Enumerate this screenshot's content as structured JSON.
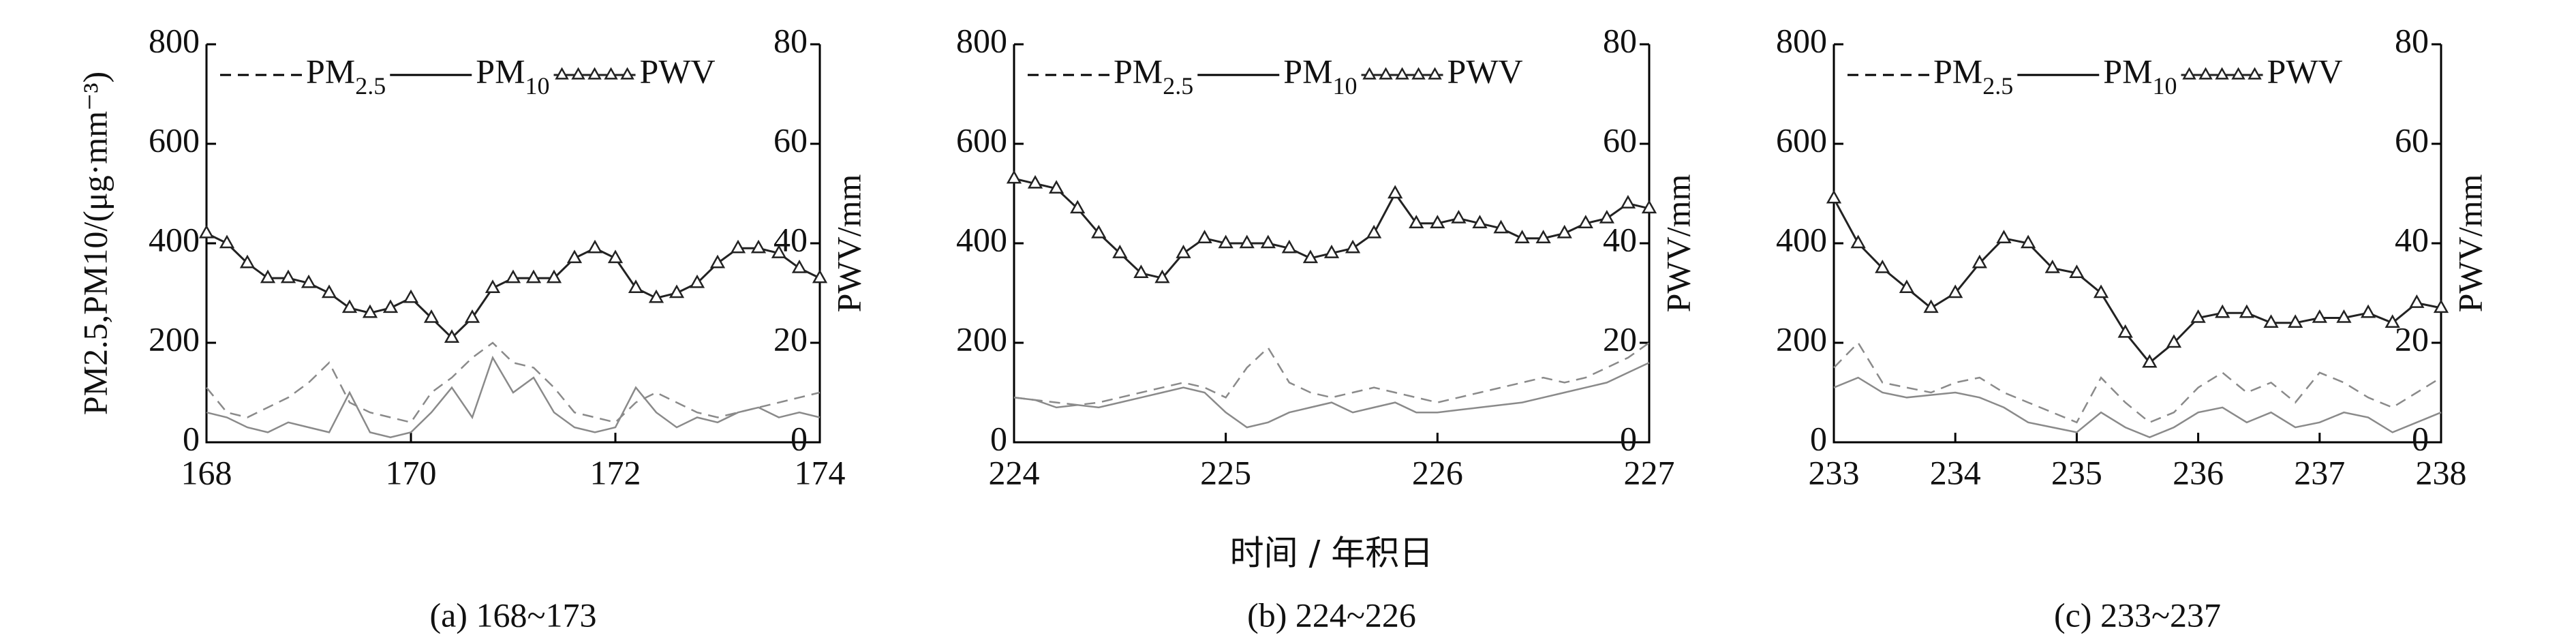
{
  "chart_data": [
    {
      "type": "line",
      "caption": "(a) 168~173",
      "ylabel": "PM2.5,PM10/(μg·mm⁻³)",
      "y2label": "PWV/mm",
      "x": [
        168,
        168.2,
        168.4,
        168.6,
        168.8,
        169,
        169.2,
        169.4,
        169.6,
        169.8,
        170,
        170.2,
        170.4,
        170.6,
        170.8,
        171,
        171.2,
        171.4,
        171.6,
        171.8,
        172,
        172.2,
        172.4,
        172.6,
        172.8,
        173,
        173.2,
        173.4,
        173.6,
        173.8,
        174
      ],
      "xlim": [
        168,
        174
      ],
      "xticks": [
        168,
        170,
        172,
        174
      ],
      "ylim": [
        0,
        800
      ],
      "yticks": [
        0,
        200,
        400,
        600,
        800
      ],
      "y2lim": [
        0,
        80
      ],
      "y2ticks": [
        0,
        20,
        40,
        60,
        80
      ],
      "series": [
        {
          "name": "PM2.5",
          "color": "#8a8a8a",
          "style": "dashed",
          "values": [
            110,
            60,
            50,
            70,
            90,
            120,
            160,
            80,
            60,
            50,
            40,
            100,
            130,
            170,
            200,
            160,
            150,
            110,
            60,
            50,
            40,
            80,
            100,
            80,
            60,
            50,
            60,
            70,
            80,
            90,
            100
          ]
        },
        {
          "name": "PM10",
          "color": "#8a8a8a",
          "style": "solid",
          "values": [
            60,
            50,
            30,
            20,
            40,
            30,
            20,
            100,
            20,
            10,
            20,
            60,
            110,
            50,
            170,
            100,
            130,
            60,
            30,
            20,
            30,
            110,
            60,
            30,
            50,
            40,
            60,
            70,
            50,
            60,
            50
          ]
        },
        {
          "name": "PWV",
          "color": "#222222",
          "style": "triangle",
          "axis": "y2",
          "values": [
            42,
            40,
            36,
            33,
            33,
            32,
            30,
            27,
            26,
            27,
            29,
            25,
            21,
            25,
            31,
            33,
            33,
            33,
            37,
            39,
            37,
            31,
            29,
            30,
            32,
            36,
            39,
            39,
            38,
            35,
            33
          ]
        }
      ]
    },
    {
      "type": "line",
      "caption": "(b) 224~226",
      "xlabel": "时间 / 年积日",
      "y2label": "PWV/mm",
      "x": [
        224,
        224.1,
        224.2,
        224.3,
        224.4,
        224.5,
        224.6,
        224.7,
        224.8,
        224.9,
        225,
        225.1,
        225.2,
        225.3,
        225.4,
        225.5,
        225.6,
        225.7,
        225.8,
        225.9,
        226,
        226.1,
        226.2,
        226.3,
        226.4,
        226.5,
        226.6,
        226.7,
        226.8,
        226.9,
        227
      ],
      "xlim": [
        224,
        227
      ],
      "xticks": [
        224,
        225,
        226,
        227
      ],
      "ylim": [
        0,
        800
      ],
      "yticks": [
        0,
        200,
        400,
        600,
        800
      ],
      "y2lim": [
        0,
        80
      ],
      "y2ticks": [
        0,
        20,
        40,
        60,
        80
      ],
      "series": [
        {
          "name": "PM2.5",
          "color": "#8a8a8a",
          "style": "dashed",
          "values": [
            90,
            85,
            80,
            75,
            80,
            90,
            100,
            110,
            120,
            110,
            90,
            150,
            190,
            120,
            100,
            90,
            100,
            110,
            100,
            90,
            80,
            90,
            100,
            110,
            120,
            130,
            120,
            130,
            150,
            170,
            200
          ]
        },
        {
          "name": "PM10",
          "color": "#8a8a8a",
          "style": "solid",
          "values": [
            90,
            85,
            70,
            75,
            70,
            80,
            90,
            100,
            110,
            100,
            60,
            30,
            40,
            60,
            70,
            80,
            60,
            70,
            80,
            60,
            60,
            65,
            70,
            75,
            80,
            90,
            100,
            110,
            120,
            140,
            160
          ]
        },
        {
          "name": "PWV",
          "color": "#222222",
          "style": "triangle",
          "axis": "y2",
          "values": [
            53,
            52,
            51,
            47,
            42,
            38,
            34,
            33,
            38,
            41,
            40,
            40,
            40,
            39,
            37,
            38,
            39,
            42,
            50,
            44,
            44,
            45,
            44,
            43,
            41,
            41,
            42,
            44,
            45,
            48,
            47
          ]
        }
      ]
    },
    {
      "type": "line",
      "caption": "(c) 233~237",
      "y2label": "PWV/mm",
      "x": [
        233,
        233.2,
        233.4,
        233.6,
        233.8,
        234,
        234.2,
        234.4,
        234.6,
        234.8,
        235,
        235.2,
        235.4,
        235.6,
        235.8,
        236,
        236.2,
        236.4,
        236.6,
        236.8,
        237,
        237.2,
        237.4,
        237.6,
        237.8,
        238
      ],
      "xlim": [
        233,
        238
      ],
      "xticks": [
        233,
        234,
        235,
        236,
        237,
        238
      ],
      "ylim": [
        0,
        800
      ],
      "yticks": [
        0,
        200,
        400,
        600,
        800
      ],
      "y2lim": [
        0,
        80
      ],
      "y2ticks": [
        0,
        20,
        40,
        60,
        80
      ],
      "series": [
        {
          "name": "PM2.5",
          "color": "#8a8a8a",
          "style": "dashed",
          "values": [
            150,
            200,
            120,
            110,
            100,
            120,
            130,
            100,
            80,
            60,
            40,
            130,
            80,
            40,
            60,
            110,
            140,
            100,
            120,
            80,
            140,
            120,
            90,
            70,
            100,
            130
          ]
        },
        {
          "name": "PM10",
          "color": "#8a8a8a",
          "style": "solid",
          "values": [
            110,
            130,
            100,
            90,
            95,
            100,
            90,
            70,
            40,
            30,
            20,
            60,
            30,
            10,
            30,
            60,
            70,
            40,
            60,
            30,
            40,
            60,
            50,
            20,
            40,
            60
          ]
        },
        {
          "name": "PWV",
          "color": "#222222",
          "style": "triangle",
          "axis": "y2",
          "values": [
            49,
            40,
            35,
            31,
            27,
            30,
            36,
            41,
            40,
            35,
            34,
            30,
            22,
            16,
            20,
            25,
            26,
            26,
            24,
            24,
            25,
            25,
            26,
            24,
            28,
            27
          ]
        }
      ]
    }
  ]
}
